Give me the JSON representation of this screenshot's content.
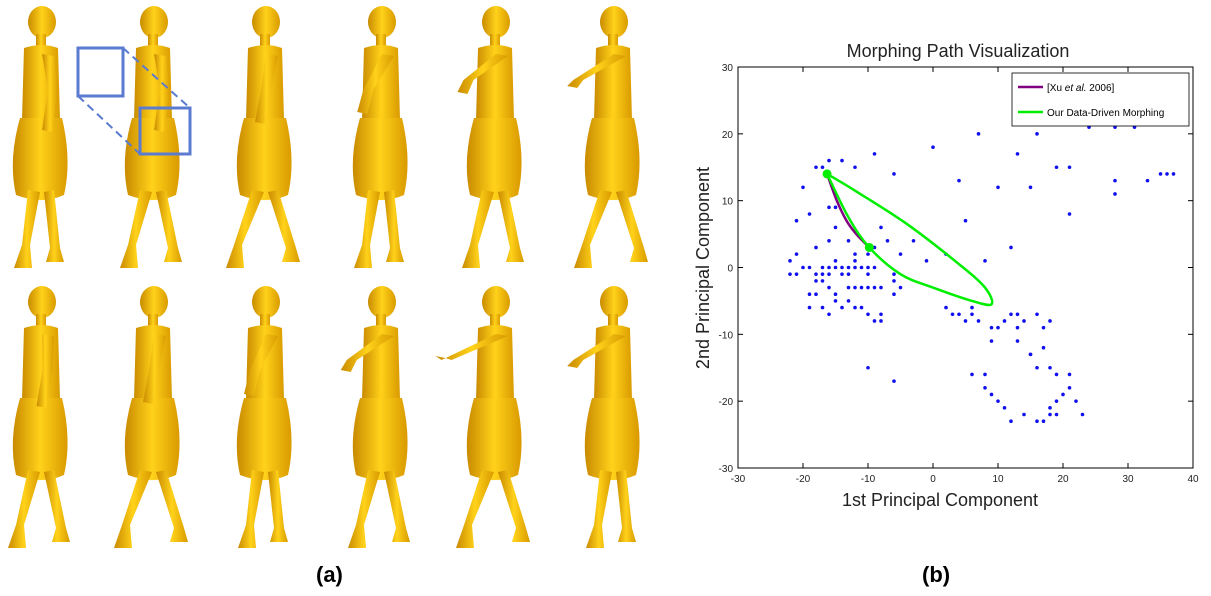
{
  "captions": {
    "a": "(a)",
    "b": "(b)"
  },
  "figure_a": {
    "figure_color": "#f2b705",
    "inset_color": "#5b7bd0",
    "rows": 2,
    "poses_per_row": 6
  },
  "chart_data": {
    "type": "scatter",
    "title": "Morphing Path Visualization",
    "xlabel": "1st Principal Component",
    "ylabel": "2nd Principal Component",
    "xlim": [
      -30,
      40
    ],
    "ylim": [
      -30,
      30
    ],
    "xticks": [
      -30,
      -20,
      -10,
      0,
      10,
      20,
      30,
      40
    ],
    "yticks": [
      -30,
      -20,
      -10,
      0,
      10,
      20,
      30
    ],
    "grid": false,
    "legend_position": "top-right",
    "legend": [
      {
        "label_prefix": "[Xu ",
        "label_italic": "et al.",
        "label_suffix": " 2006]",
        "color": "#800080"
      },
      {
        "label": "Our Data-Driven Morphing",
        "color": "#00ee00"
      }
    ],
    "point_color": "#1010ee",
    "points": [
      [
        -18,
        15
      ],
      [
        -17,
        15
      ],
      [
        -16,
        16
      ],
      [
        -14,
        16
      ],
      [
        -12,
        15
      ],
      [
        -9,
        17
      ],
      [
        -6,
        14
      ],
      [
        0,
        18
      ],
      [
        4,
        13
      ],
      [
        7,
        20
      ],
      [
        10,
        12
      ],
      [
        13,
        17
      ],
      [
        15,
        12
      ],
      [
        16,
        20
      ],
      [
        19,
        15
      ],
      [
        21,
        15
      ],
      [
        24,
        21
      ],
      [
        28,
        21
      ],
      [
        31,
        21
      ],
      [
        20,
        23
      ],
      [
        28,
        13
      ],
      [
        28,
        11
      ],
      [
        33,
        13
      ],
      [
        35,
        14
      ],
      [
        36,
        14
      ],
      [
        37,
        14
      ],
      [
        21,
        8
      ],
      [
        12,
        3
      ],
      [
        8,
        1
      ],
      [
        5,
        7
      ],
      [
        2,
        2
      ],
      [
        -1,
        1
      ],
      [
        -3,
        4
      ],
      [
        -5,
        2
      ],
      [
        -20,
        12
      ],
      [
        -21,
        7
      ],
      [
        -19,
        8
      ],
      [
        -22,
        1
      ],
      [
        -21,
        2
      ],
      [
        -20,
        0
      ],
      [
        -22,
        -1
      ],
      [
        -21,
        -1
      ],
      [
        -19,
        0
      ],
      [
        -18,
        3
      ],
      [
        -18,
        -1
      ],
      [
        -17,
        -1
      ],
      [
        -17,
        0
      ],
      [
        -18,
        -2
      ],
      [
        -19,
        -4
      ],
      [
        -18,
        -4
      ],
      [
        -19,
        -6
      ],
      [
        -17,
        -2
      ],
      [
        -16,
        0
      ],
      [
        -16,
        -1
      ],
      [
        -15,
        0
      ],
      [
        -15,
        1
      ],
      [
        -14,
        -1
      ],
      [
        -14,
        0
      ],
      [
        -13,
        -1
      ],
      [
        -13,
        0
      ],
      [
        -12,
        0
      ],
      [
        -12,
        1
      ],
      [
        -11,
        0
      ],
      [
        -10,
        0
      ],
      [
        -10,
        -1
      ],
      [
        -9,
        0
      ],
      [
        -16,
        -3
      ],
      [
        -15,
        -4
      ],
      [
        -13,
        -3
      ],
      [
        -12,
        -3
      ],
      [
        -11,
        -3
      ],
      [
        -10,
        -3
      ],
      [
        -9,
        -3
      ],
      [
        -8,
        -3
      ],
      [
        -15,
        -5
      ],
      [
        -13,
        -5
      ],
      [
        -12,
        -6
      ],
      [
        -14,
        -6
      ],
      [
        -11,
        -6
      ],
      [
        -10,
        -7
      ],
      [
        -8,
        -7
      ],
      [
        -16,
        -7
      ],
      [
        -17,
        -6
      ],
      [
        -9,
        -8
      ],
      [
        -8,
        -8
      ],
      [
        -6,
        -4
      ],
      [
        -5,
        -3
      ],
      [
        -6,
        -1
      ],
      [
        -16,
        9
      ],
      [
        -15,
        9
      ],
      [
        -15,
        6
      ],
      [
        -16,
        4
      ],
      [
        -13,
        4
      ],
      [
        -12,
        2
      ],
      [
        -10,
        2
      ],
      [
        -9,
        3
      ],
      [
        -8,
        6
      ],
      [
        -7,
        4
      ],
      [
        -6,
        -2
      ],
      [
        2,
        -6
      ],
      [
        3,
        -7
      ],
      [
        4,
        -7
      ],
      [
        5,
        -8
      ],
      [
        6,
        -7
      ],
      [
        6,
        -6
      ],
      [
        7,
        -8
      ],
      [
        9,
        -9
      ],
      [
        9,
        -11
      ],
      [
        10,
        -9
      ],
      [
        11,
        -8
      ],
      [
        12,
        -7
      ],
      [
        13,
        -7
      ],
      [
        13,
        -9
      ],
      [
        14,
        -8
      ],
      [
        16,
        -7
      ],
      [
        17,
        -9
      ],
      [
        18,
        -8
      ],
      [
        13,
        -11
      ],
      [
        15,
        -13
      ],
      [
        16,
        -15
      ],
      [
        17,
        -12
      ],
      [
        18,
        -15
      ],
      [
        19,
        -16
      ],
      [
        21,
        -16
      ],
      [
        21,
        -18
      ],
      [
        22,
        -20
      ],
      [
        20,
        -19
      ],
      [
        19,
        -20
      ],
      [
        18,
        -21
      ],
      [
        18,
        -22
      ],
      [
        19,
        -22
      ],
      [
        16,
        -23
      ],
      [
        12,
        -23
      ],
      [
        15,
        -13
      ],
      [
        8,
        -16
      ],
      [
        6,
        -16
      ],
      [
        8,
        -18
      ],
      [
        9,
        -19
      ],
      [
        10,
        -20
      ],
      [
        11,
        -21
      ],
      [
        14,
        -22
      ],
      [
        17,
        -23
      ],
      [
        23,
        -22
      ],
      [
        -10,
        -15
      ],
      [
        -6,
        -17
      ]
    ],
    "series": [
      {
        "name": "[Xu et al. 2006]",
        "type": "line",
        "color": "#800080",
        "x": [
          -16.3,
          -14.8,
          -13.3,
          -11.8,
          -9.8
        ],
        "y": [
          14,
          10,
          7,
          5,
          3
        ]
      },
      {
        "name": "Our Data-Driven Morphing",
        "type": "line",
        "color": "#00ee00",
        "x": [
          -16.3,
          -12,
          -4,
          4,
          8,
          9,
          6,
          0,
          -5,
          -9.8,
          -13,
          -16.3
        ],
        "y": [
          14,
          11.5,
          6.5,
          0.5,
          -3,
          -5.5,
          -5,
          -3,
          -1,
          3,
          7.5,
          14
        ]
      }
    ],
    "markers": [
      {
        "x": -16.3,
        "y": 14,
        "color": "#00ee00"
      },
      {
        "x": -9.8,
        "y": 3,
        "color": "#00ee00"
      }
    ]
  }
}
